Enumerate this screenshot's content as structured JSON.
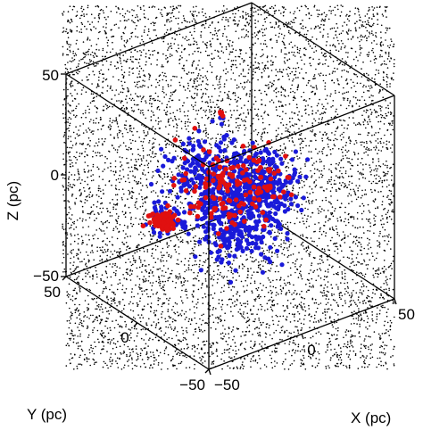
{
  "chart_data": {
    "type": "scatter",
    "projection": "3d-box",
    "axes": {
      "x": {
        "label": "X (pc)",
        "range": [
          -50,
          50
        ],
        "ticks": [
          "−50",
          "0",
          "50"
        ]
      },
      "y": {
        "label": "Y (pc)",
        "range": [
          -50,
          50
        ],
        "ticks": [
          "−50",
          "0",
          "50"
        ]
      },
      "z": {
        "label": "Z (pc)",
        "range": [
          -50,
          50
        ],
        "ticks": [
          "−50",
          "0",
          "50"
        ]
      }
    },
    "background_field": {
      "color": "#000000",
      "count": 7000,
      "description": "uniformly distributed field stars"
    },
    "series": [
      {
        "color": "#1a1ad9",
        "marker": "circle",
        "groups": [
          {
            "center_screen_data": [
              -12,
              8
            ],
            "spread": [
              14,
              10
            ],
            "count": 180
          },
          {
            "center_screen_data": [
              22,
              2
            ],
            "spread": [
              10,
              10
            ],
            "count": 200
          },
          {
            "center_screen_data": [
              2,
              -10
            ],
            "spread": [
              14,
              12
            ],
            "count": 240
          },
          {
            "center_screen_data": [
              -40,
              -20
            ],
            "spread": [
              6,
              4
            ],
            "count": 60
          },
          {
            "center_screen_data": [
              5,
              -30
            ],
            "spread": [
              14,
              8
            ],
            "count": 120
          },
          {
            "center_screen_data": [
              -6,
              42
            ],
            "spread": [
              2,
              2
            ],
            "count": 6
          }
        ]
      },
      {
        "color": "#e01010",
        "marker": "circle",
        "groups": [
          {
            "center_screen_data": [
              -40,
              -20
            ],
            "spread": [
              5,
              3
            ],
            "count": 70
          },
          {
            "center_screen_data": [
              -8,
              6
            ],
            "spread": [
              12,
              10
            ],
            "count": 60
          },
          {
            "center_screen_data": [
              20,
              4
            ],
            "spread": [
              10,
              8
            ],
            "count": 45
          },
          {
            "center_screen_data": [
              0,
              -12
            ],
            "spread": [
              14,
              10
            ],
            "count": 40
          },
          {
            "center_screen_data": [
              -6,
              43
            ],
            "spread": [
              1,
              1
            ],
            "count": 4
          }
        ]
      }
    ]
  }
}
